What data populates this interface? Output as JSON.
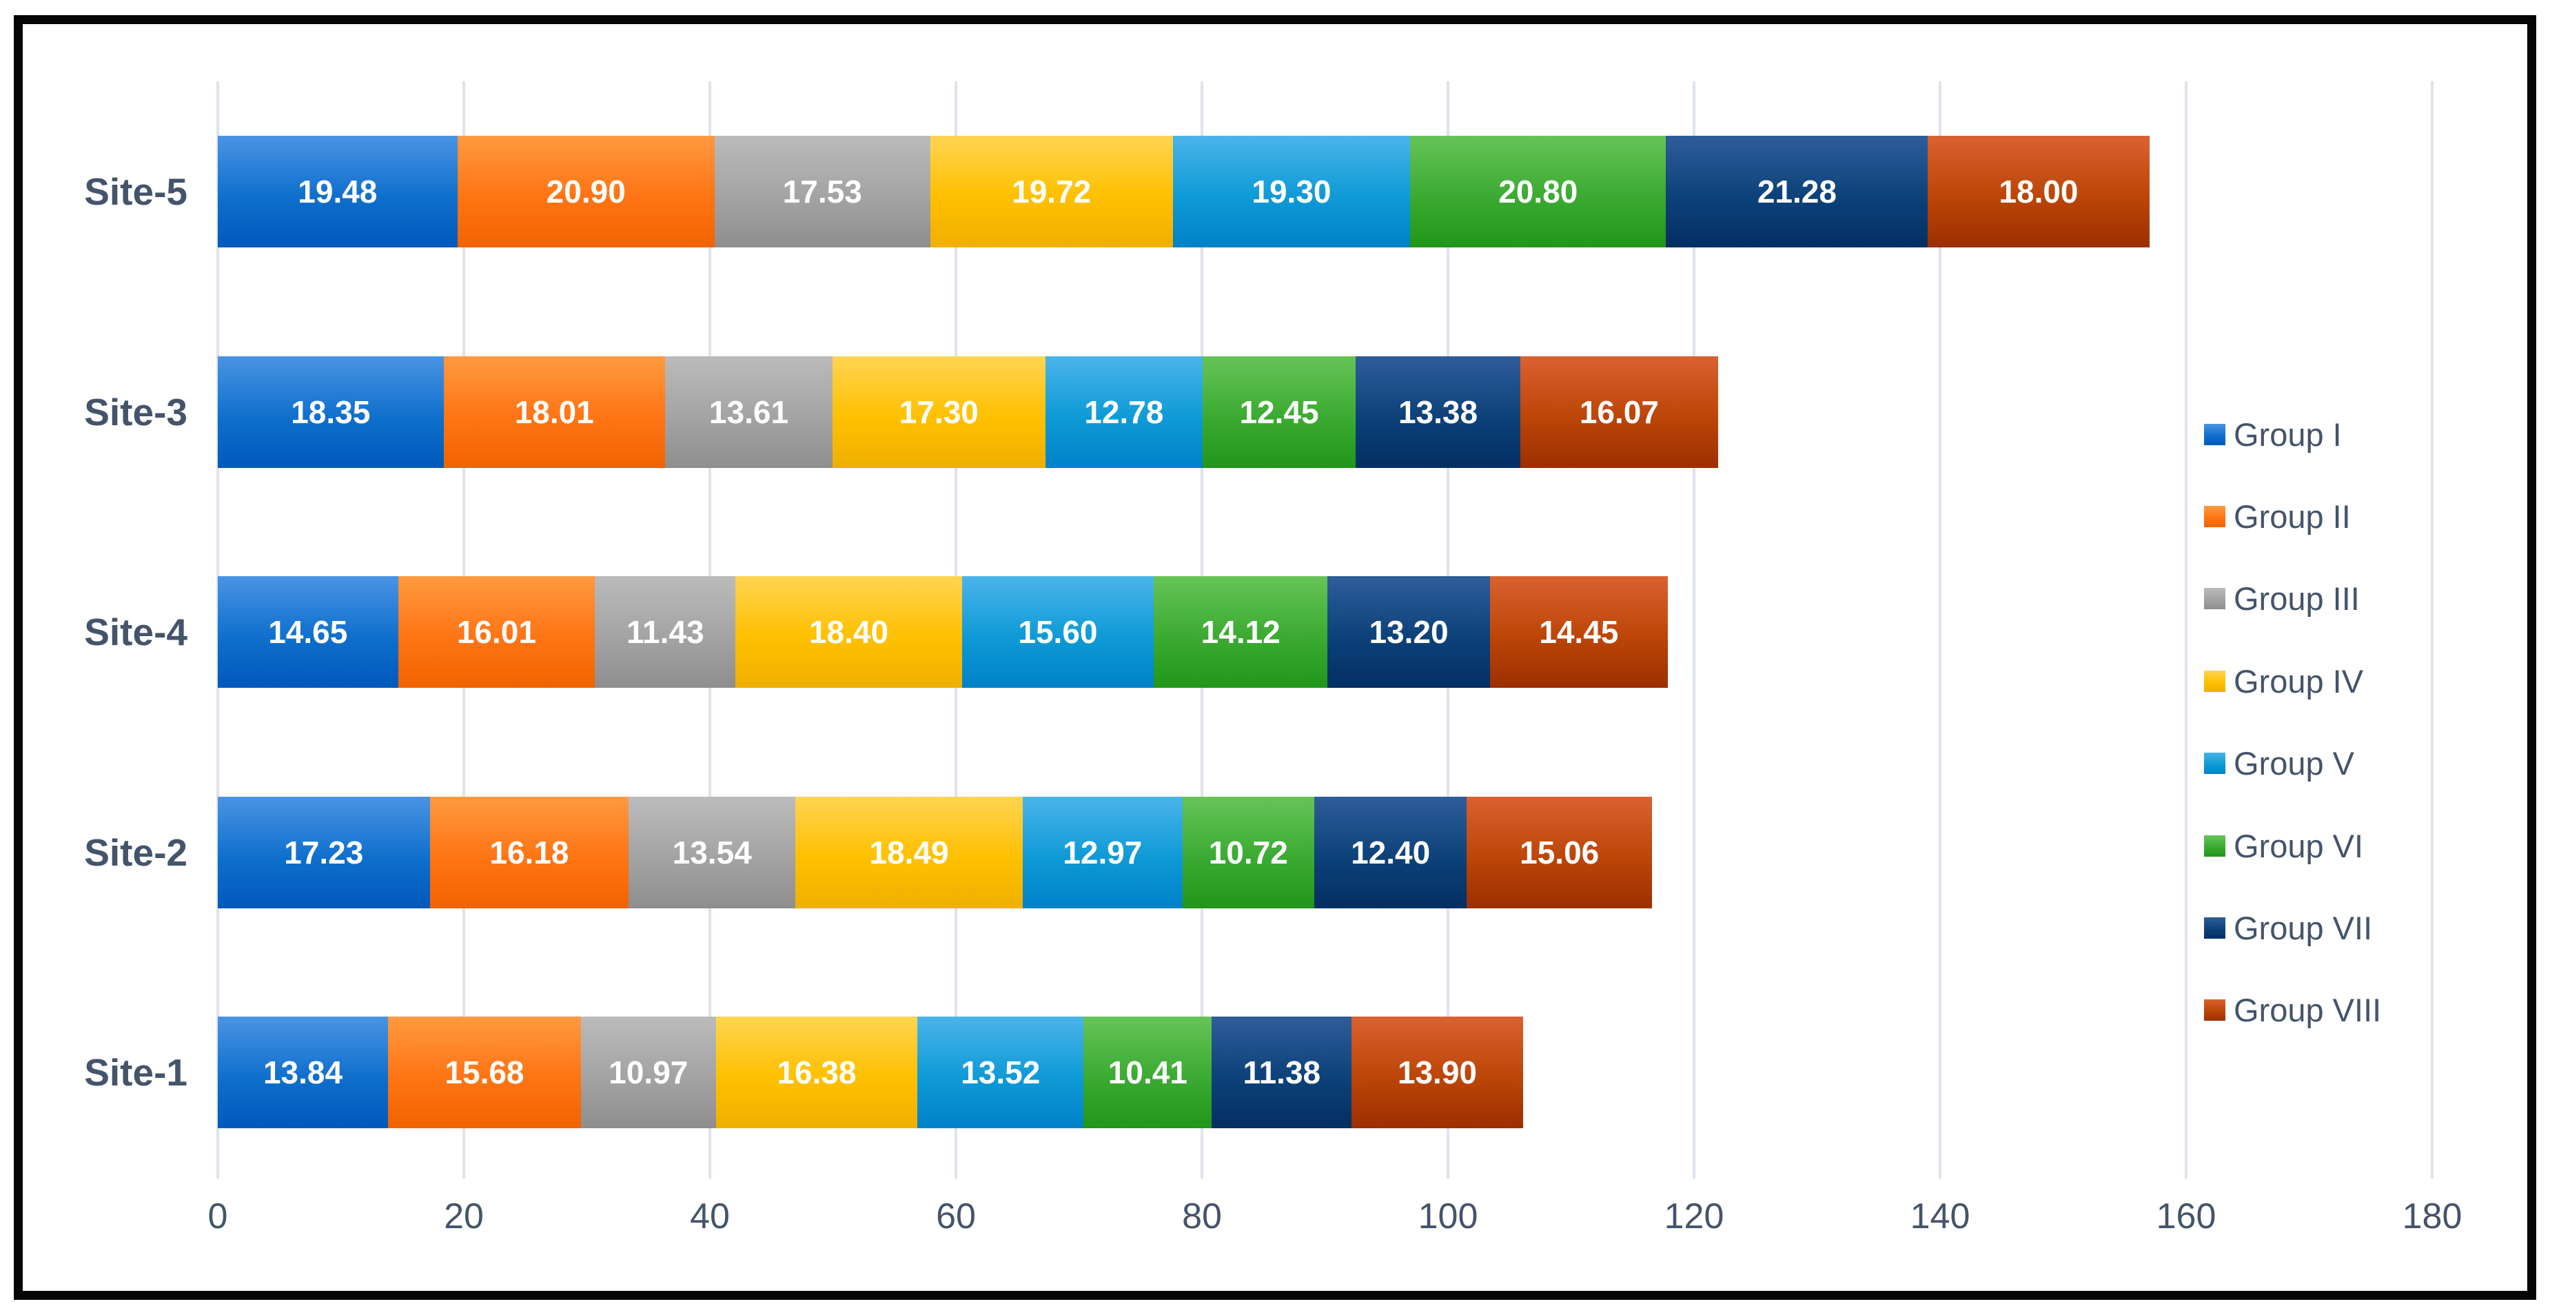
{
  "chart_data": {
    "type": "bar",
    "stacked": true,
    "orientation": "horizontal",
    "title": "",
    "xlabel": "",
    "ylabel": "",
    "xlim": [
      0,
      180
    ],
    "x_ticks": [
      0,
      20,
      40,
      60,
      80,
      100,
      120,
      140,
      160,
      180
    ],
    "grid": true,
    "legend_position": "right",
    "categories": [
      "Site-5",
      "Site-3",
      "Site-4",
      "Site-2",
      "Site-1"
    ],
    "series": [
      {
        "name": "Group I",
        "color": "#0f6fcc",
        "color_light": "#4a94e4",
        "color_dark": "#0059bc",
        "values": [
          19.48,
          18.35,
          14.65,
          17.23,
          13.84
        ]
      },
      {
        "name": "Group II",
        "color": "#ff7414",
        "color_light": "#ff9a40",
        "color_dark": "#f06300",
        "values": [
          20.9,
          18.01,
          16.01,
          16.18,
          15.68
        ]
      },
      {
        "name": "Group III",
        "color": "#a3a3a3",
        "color_light": "#bbbbbb",
        "color_dark": "#8e8e8e",
        "values": [
          17.53,
          13.61,
          11.43,
          13.54,
          10.97
        ]
      },
      {
        "name": "Group IV",
        "color": "#ffc000",
        "color_light": "#ffd452",
        "color_dark": "#efaf00",
        "values": [
          19.72,
          17.3,
          18.4,
          18.49,
          16.38
        ]
      },
      {
        "name": "Group V",
        "color": "#0e9ad6",
        "color_light": "#4bb4ea",
        "color_dark": "#0081c8",
        "values": [
          19.3,
          12.78,
          15.6,
          12.97,
          13.52
        ]
      },
      {
        "name": "Group VI",
        "color": "#3baa32",
        "color_light": "#66c457",
        "color_dark": "#21961a",
        "values": [
          20.8,
          12.45,
          14.12,
          10.72,
          10.41
        ]
      },
      {
        "name": "Group VII",
        "color": "#0d4179",
        "color_light": "#2f5d9a",
        "color_dark": "#032f63",
        "values": [
          21.28,
          13.38,
          13.2,
          12.4,
          11.38
        ]
      },
      {
        "name": "Group VIII",
        "color": "#bc4508",
        "color_light": "#d96230",
        "color_dark": "#9c2f00",
        "values": [
          18.0,
          16.07,
          14.45,
          15.06,
          13.9
        ]
      }
    ],
    "value_label_format": "2dp",
    "value_label_color": "#ffffff",
    "axis_text_color": "#44546a",
    "gridline_color": "#dde3eb",
    "frame_color": "#050505"
  }
}
